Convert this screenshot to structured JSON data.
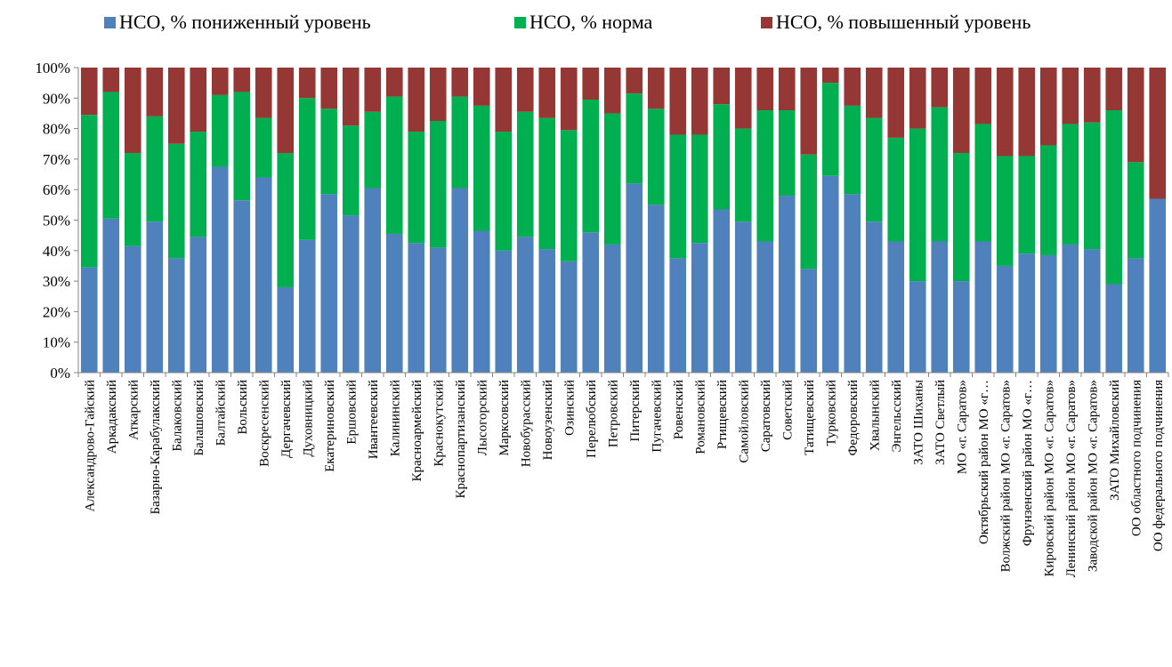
{
  "chart_data": {
    "type": "bar",
    "stacked": "percent",
    "legend_position": "top",
    "grid": false,
    "ylim": [
      0,
      100
    ],
    "yticks": [
      "0%",
      "10%",
      "20%",
      "30%",
      "40%",
      "50%",
      "60%",
      "70%",
      "80%",
      "90%",
      "100%"
    ],
    "categories": [
      "Александрово-Гайский",
      "Аркадакский",
      "Аткарский",
      "Базарно-Карабулакский",
      "Балаковский",
      "Балашовский",
      "Балтайский",
      "Вольский",
      "Воскресенский",
      "Дергачевский",
      "Духовницкий",
      "Екатериновский",
      "Ершовский",
      "Ивантеевский",
      "Калининский",
      "Красноармейский",
      "Краснокутский",
      "Краснопартизанский",
      "Лысогорский",
      "Марксовский",
      "Новобурасский",
      "Новоузенский",
      "Озинский",
      "Перелюбский",
      "Петровский",
      "Питерский",
      "Пугачевский",
      "Ровенский",
      "Романовский",
      "Ртищевский",
      "Самойловский",
      "Саратовский",
      "Советский",
      "Татищевский",
      "Турковский",
      "Федоровский",
      "Хвалынский",
      "Энгельсский",
      "ЗАТО Шиханы",
      "ЗАТО Светлый",
      "МО «г. Саратов»",
      "Октябрьский район МО «г…",
      "Волжский район МО «г. Саратов»",
      "Фрунзенский район МО «г…",
      "Кировский район МО «г. Саратов»",
      "Ленинский район МО «г. Саратов»",
      "Заводской район МО «г. Саратов»",
      "ЗАТО Михайловский",
      "ОО областного подчинения",
      "ОО федерального подчинения"
    ],
    "series": [
      {
        "name": "НСО, % пониженный уровень",
        "color": "#4f81bd",
        "values": [
          34.5,
          50.5,
          41.5,
          49.5,
          37.5,
          44.5,
          67.5,
          56.5,
          64,
          28,
          43.5,
          58.5,
          51.5,
          60.5,
          45.5,
          42.5,
          41,
          60.5,
          46.5,
          40,
          44.5,
          40.5,
          36.5,
          46,
          42,
          62,
          55,
          37.5,
          42.5,
          53.5,
          49.5,
          43,
          58,
          34,
          64.5,
          58.5,
          49.5,
          43,
          30,
          43,
          30,
          43,
          35,
          39,
          38.5,
          42,
          40.5,
          29,
          37.5,
          57
        ]
      },
      {
        "name": "НСО, % норма",
        "color": "#00b050",
        "values": [
          50,
          41.5,
          30.5,
          34.5,
          37.5,
          34.5,
          23.5,
          35.5,
          19.5,
          44,
          46.5,
          28,
          29.5,
          25,
          45,
          36.5,
          41.5,
          30,
          41,
          39,
          41,
          43,
          43,
          43.5,
          43,
          29.5,
          31.5,
          40.5,
          35.5,
          34.5,
          30.5,
          43,
          28,
          37.5,
          30.5,
          29,
          34,
          34,
          50,
          44,
          42,
          38.5,
          36,
          32,
          36,
          39.5,
          41.5,
          57,
          31.5,
          0
        ]
      },
      {
        "name": "НСО, % повышенный уровень",
        "color": "#953735",
        "values": [
          15.5,
          8,
          28,
          16,
          25,
          21,
          9,
          8,
          16.5,
          28,
          10,
          13.5,
          19,
          14.5,
          9.5,
          21,
          17.5,
          9.5,
          12.5,
          21,
          14.5,
          16.5,
          20.5,
          10.5,
          15,
          8.5,
          13.5,
          22,
          22,
          12,
          20,
          14,
          14,
          28.5,
          5,
          12.5,
          16.5,
          23,
          20,
          13,
          28,
          18.5,
          29,
          29,
          25.5,
          18.5,
          18,
          14,
          31,
          43
        ]
      }
    ]
  }
}
